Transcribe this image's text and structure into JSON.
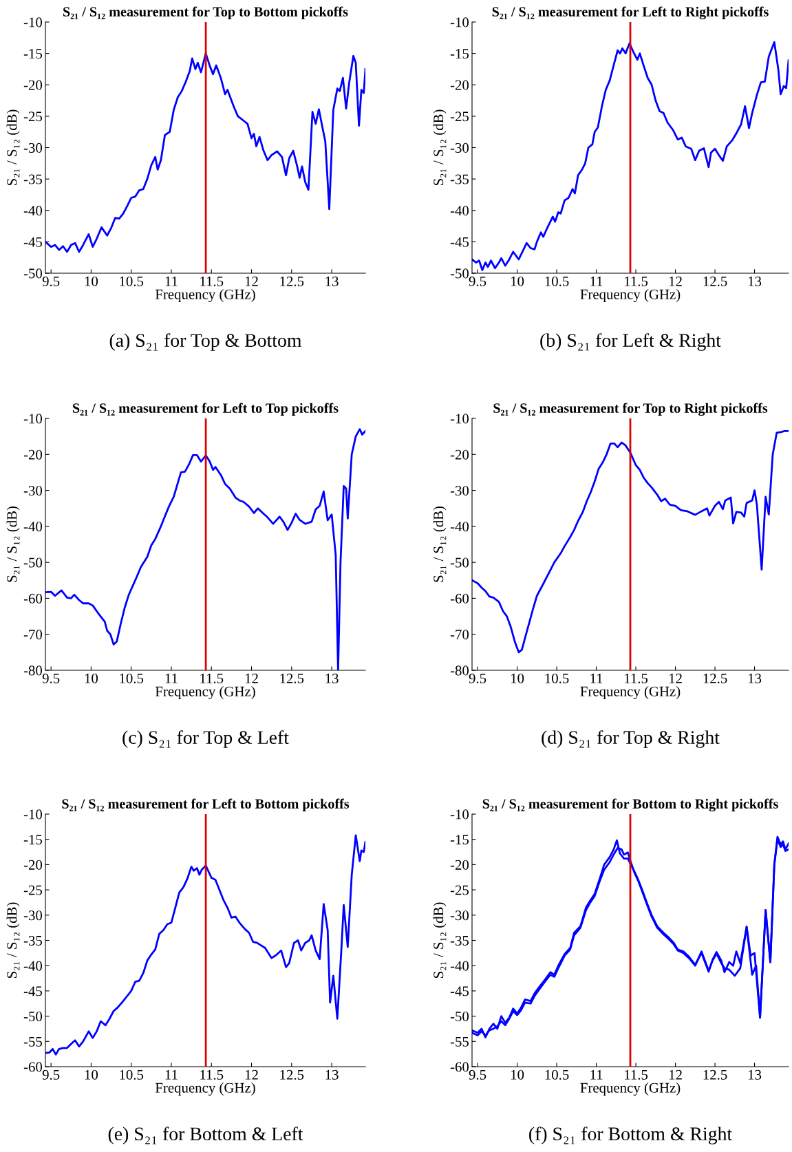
{
  "chart_data": [
    {
      "type": "line",
      "title": "S₂₁ / S₁₂ measurement for Top to Bottom pickoffs",
      "xlabel": "Frequency (GHz)",
      "ylabel": "S₂₁ / S₁₂ (dB)",
      "xlim": [
        9.43,
        13.42
      ],
      "ylim": [
        -50,
        -10
      ],
      "xticks": [
        9.5,
        10,
        10.5,
        11,
        11.5,
        12,
        12.5,
        13
      ],
      "yticks": [
        -50,
        -45,
        -40,
        -35,
        -30,
        -25,
        -20,
        -15,
        -10
      ],
      "grid": false,
      "legend": false,
      "ref_lines": [
        {
          "axis": "x",
          "value": 11.43,
          "color": "#e00000"
        }
      ],
      "annotations": [
        "(a) S₂₁ for Top & Bottom"
      ],
      "series": [
        {
          "color": "#0000ff",
          "x": [
            9.43,
            9.5,
            9.55,
            9.6,
            9.65,
            9.7,
            9.75,
            9.8,
            9.85,
            9.9,
            9.97,
            10.02,
            10.07,
            10.13,
            10.2,
            10.25,
            10.3,
            10.35,
            10.4,
            10.45,
            10.5,
            10.55,
            10.6,
            10.65,
            10.7,
            10.75,
            10.8,
            10.83,
            10.87,
            10.92,
            10.98,
            11.03,
            11.08,
            11.13,
            11.18,
            11.23,
            11.26,
            11.3,
            11.33,
            11.37,
            11.43,
            11.48,
            11.52,
            11.56,
            11.62,
            11.67,
            11.7,
            11.78,
            11.83,
            11.9,
            11.95,
            12.0,
            12.03,
            12.06,
            12.1,
            12.15,
            12.2,
            12.25,
            12.32,
            12.38,
            12.43,
            12.47,
            12.52,
            12.57,
            12.6,
            12.63,
            12.67,
            12.71,
            12.76,
            12.8,
            12.84,
            12.88,
            12.92,
            12.97,
            13.02,
            13.07,
            13.1,
            13.14,
            13.18,
            13.22,
            13.27,
            13.3,
            13.34,
            13.37,
            13.4,
            13.42
          ],
          "values": [
            -45,
            -45.8,
            -45.5,
            -46.3,
            -45.7,
            -46.6,
            -45.5,
            -45.2,
            -46.6,
            -45.5,
            -43.8,
            -45.8,
            -44.5,
            -42.7,
            -44,
            -42.8,
            -41.2,
            -41.3,
            -40.5,
            -39.3,
            -38,
            -37.8,
            -36.8,
            -36.6,
            -35,
            -32.8,
            -31.5,
            -33.5,
            -32,
            -28,
            -27.5,
            -24,
            -22,
            -21,
            -19.5,
            -17.8,
            -15.8,
            -17.5,
            -16.5,
            -18,
            -15,
            -17,
            -18.3,
            -16.9,
            -19,
            -21.5,
            -20.8,
            -23.5,
            -25,
            -25.7,
            -26.2,
            -28.5,
            -27.8,
            -29.8,
            -28.3,
            -30.5,
            -32,
            -31.2,
            -30.6,
            -31.5,
            -34.4,
            -31.7,
            -30.5,
            -33,
            -34.8,
            -33,
            -35.5,
            -36.7,
            -24.3,
            -26.2,
            -23.9,
            -26.5,
            -29,
            -39.8,
            -24,
            -20.6,
            -21,
            -18.9,
            -23.8,
            -19.5,
            -15.4,
            -16.5,
            -26.5,
            -20.8,
            -21.3,
            -17.5
          ]
        }
      ]
    },
    {
      "type": "line",
      "title": "S₂₁ / S₁₂ measurement for Left to Right pickoffs",
      "xlabel": "Frequency (GHz)",
      "ylabel": "S₂₁ / S₁₂ (dB)",
      "xlim": [
        9.43,
        13.43
      ],
      "ylim": [
        -50,
        -10
      ],
      "xticks": [
        9.5,
        10,
        10.5,
        11,
        11.5,
        12,
        12.5,
        13
      ],
      "yticks": [
        -50,
        -45,
        -40,
        -35,
        -30,
        -25,
        -20,
        -15,
        -10
      ],
      "grid": false,
      "legend": false,
      "ref_lines": [
        {
          "axis": "x",
          "value": 11.43,
          "color": "#e00000"
        }
      ],
      "annotations": [
        "(b) S₂₁ for Left & Right"
      ],
      "series": [
        {
          "color": "#0000ff",
          "x": [
            9.43,
            9.48,
            9.52,
            9.56,
            9.6,
            9.63,
            9.67,
            9.72,
            9.77,
            9.8,
            9.85,
            9.9,
            9.95,
            10.02,
            10.07,
            10.12,
            10.17,
            10.22,
            10.25,
            10.3,
            10.33,
            10.38,
            10.45,
            10.48,
            10.52,
            10.55,
            10.6,
            10.65,
            10.7,
            10.73,
            10.77,
            10.82,
            10.86,
            10.9,
            10.95,
            10.98,
            11.02,
            11.07,
            11.12,
            11.17,
            11.22,
            11.27,
            11.3,
            11.33,
            11.37,
            11.42,
            11.47,
            11.52,
            11.55,
            11.6,
            11.65,
            11.7,
            11.75,
            11.8,
            11.85,
            11.9,
            11.97,
            12.03,
            12.08,
            12.13,
            12.2,
            12.25,
            12.3,
            12.36,
            12.42,
            12.45,
            12.5,
            12.55,
            12.6,
            12.65,
            12.72,
            12.78,
            12.83,
            12.88,
            12.93,
            12.97,
            13.03,
            13.08,
            13.13,
            13.18,
            13.25,
            13.3,
            13.33,
            13.37,
            13.4,
            13.43
          ],
          "values": [
            -47.8,
            -48.3,
            -48,
            -49.5,
            -48.3,
            -49,
            -48,
            -49.2,
            -48.3,
            -47.6,
            -48.8,
            -47.8,
            -46.6,
            -47.8,
            -46.5,
            -45.2,
            -46,
            -46.2,
            -45,
            -43.5,
            -44.2,
            -42.8,
            -41,
            -41.8,
            -40.3,
            -40.5,
            -38.4,
            -38,
            -36.6,
            -37.3,
            -34.4,
            -33.5,
            -32.5,
            -30,
            -29.5,
            -27.5,
            -26.8,
            -23.5,
            -20.8,
            -19.3,
            -16.9,
            -14.5,
            -15,
            -14.2,
            -15,
            -13.4,
            -14.8,
            -16,
            -15,
            -17,
            -18.9,
            -20,
            -22.5,
            -24.2,
            -24.5,
            -26,
            -27.2,
            -28.7,
            -28.4,
            -29.8,
            -30.2,
            -32,
            -30.5,
            -30.1,
            -33.1,
            -30.8,
            -30.2,
            -31.2,
            -32.1,
            -29.8,
            -28.8,
            -27.5,
            -26.3,
            -23.4,
            -26.9,
            -24.5,
            -21.6,
            -19.6,
            -19.5,
            -15.5,
            -13.2,
            -17.5,
            -21.5,
            -20.2,
            -20.5,
            -16.1
          ]
        }
      ]
    },
    {
      "type": "line",
      "title": "S₂₁ / S₁₂ measurement for Left to Top pickoffs",
      "xlabel": "Frequency (GHz)",
      "ylabel": "S₂₁ / S₁₂ (dB)",
      "xlim": [
        9.43,
        13.42
      ],
      "ylim": [
        -80,
        -10
      ],
      "xticks": [
        9.5,
        10,
        10.5,
        11,
        11.5,
        12,
        12.5,
        13
      ],
      "yticks": [
        -80,
        -70,
        -60,
        -50,
        -40,
        -30,
        -20,
        -10
      ],
      "grid": false,
      "legend": false,
      "ref_lines": [
        {
          "axis": "x",
          "value": 11.43,
          "color": "#e00000"
        }
      ],
      "annotations": [
        "(c) S₂₁ for Top & Left"
      ],
      "series": [
        {
          "color": "#0000ff",
          "x": [
            9.43,
            9.5,
            9.55,
            9.63,
            9.7,
            9.75,
            9.79,
            9.85,
            9.9,
            9.97,
            10.02,
            10.1,
            10.17,
            10.2,
            10.24,
            10.28,
            10.32,
            10.37,
            10.42,
            10.47,
            10.52,
            10.57,
            10.62,
            10.7,
            10.75,
            10.8,
            10.87,
            10.92,
            10.97,
            11.03,
            11.08,
            11.12,
            11.17,
            11.22,
            11.27,
            11.32,
            11.37,
            11.43,
            11.48,
            11.52,
            11.55,
            11.62,
            11.67,
            11.73,
            11.8,
            11.85,
            11.9,
            11.97,
            12.03,
            12.08,
            12.15,
            12.2,
            12.27,
            12.35,
            12.4,
            12.45,
            12.5,
            12.55,
            12.6,
            12.67,
            12.75,
            12.8,
            12.85,
            12.9,
            12.95,
            13.0,
            13.05,
            13.08,
            13.11,
            13.15,
            13.18,
            13.2,
            13.25,
            13.3,
            13.35,
            13.38,
            13.42
          ],
          "values": [
            -58.3,
            -58.2,
            -59.3,
            -57.8,
            -59.8,
            -60,
            -59,
            -60.5,
            -61.4,
            -61.4,
            -62,
            -64.5,
            -66.5,
            -69,
            -70,
            -72.8,
            -72,
            -67,
            -62.5,
            -59,
            -56.5,
            -54,
            -51.3,
            -48.5,
            -45.3,
            -43.5,
            -40,
            -37.2,
            -34.5,
            -31.8,
            -28,
            -25,
            -24.8,
            -22.8,
            -20.2,
            -20.2,
            -22,
            -20.3,
            -22,
            -24.3,
            -23.5,
            -25.8,
            -28.2,
            -29.5,
            -32,
            -32.8,
            -33.2,
            -34.5,
            -36.3,
            -35,
            -36.5,
            -37.5,
            -39.3,
            -37.3,
            -38.8,
            -41,
            -39,
            -36.5,
            -38.2,
            -39.3,
            -38.7,
            -35.3,
            -34.3,
            -30.3,
            -38.3,
            -36.7,
            -48,
            -80,
            -50,
            -28.8,
            -29.5,
            -37.8,
            -20,
            -15,
            -13,
            -14.5,
            -13.5
          ]
        }
      ]
    },
    {
      "type": "line",
      "title": "S₂₁ / S₁₂ measurement for Top to Right pickoffs",
      "xlabel": "Frequency (GHz)",
      "ylabel": "S₂₁ / S₁₂ (dB)",
      "xlim": [
        9.43,
        13.43
      ],
      "ylim": [
        -80,
        -10
      ],
      "xticks": [
        9.5,
        10,
        10.5,
        11,
        11.5,
        12,
        12.5,
        13
      ],
      "yticks": [
        -80,
        -70,
        -60,
        -50,
        -40,
        -30,
        -20,
        -10
      ],
      "grid": false,
      "legend": false,
      "ref_lines": [
        {
          "axis": "x",
          "value": 11.43,
          "color": "#e00000"
        }
      ],
      "annotations": [
        "(d) S₂₁ for Top & Right"
      ],
      "series": [
        {
          "color": "#0000ff",
          "x": [
            9.43,
            9.5,
            9.55,
            9.6,
            9.65,
            9.7,
            9.77,
            9.82,
            9.87,
            9.92,
            9.97,
            10.02,
            10.06,
            10.1,
            10.15,
            10.2,
            10.25,
            10.33,
            10.4,
            10.47,
            10.55,
            10.6,
            10.67,
            10.72,
            10.77,
            10.83,
            10.88,
            10.93,
            10.98,
            11.03,
            11.08,
            11.13,
            11.18,
            11.23,
            11.27,
            11.32,
            11.37,
            11.43,
            11.5,
            11.55,
            11.6,
            11.65,
            11.7,
            11.77,
            11.82,
            11.87,
            11.93,
            12.0,
            12.07,
            12.15,
            12.25,
            12.33,
            12.4,
            12.43,
            12.5,
            12.55,
            12.6,
            12.63,
            12.7,
            12.73,
            12.77,
            12.83,
            12.87,
            12.9,
            12.97,
            13.0,
            13.03,
            13.09,
            13.14,
            13.18,
            13.23,
            13.28,
            13.33,
            13.38,
            13.43
          ],
          "values": [
            -55,
            -55.8,
            -57,
            -58,
            -59.5,
            -59.8,
            -61,
            -63.5,
            -65,
            -68,
            -72,
            -75,
            -74.3,
            -71,
            -67,
            -63,
            -59.3,
            -56,
            -53,
            -50,
            -47.5,
            -45.5,
            -43,
            -41,
            -38.5,
            -36,
            -33,
            -30.5,
            -27.5,
            -24,
            -22.3,
            -20,
            -17,
            -17,
            -18,
            -16.7,
            -17.5,
            -19.5,
            -23,
            -24.3,
            -26.5,
            -28,
            -29.2,
            -31.2,
            -33,
            -32.3,
            -34,
            -34.3,
            -35.5,
            -35.8,
            -36.8,
            -35.8,
            -35,
            -37,
            -34.3,
            -33.2,
            -35.2,
            -32.8,
            -32,
            -39.2,
            -36,
            -36.2,
            -37.3,
            -33.5,
            -32.8,
            -30,
            -34,
            -52,
            -31.8,
            -36.7,
            -20,
            -14,
            -13.8,
            -13.5,
            -13.5
          ]
        }
      ]
    },
    {
      "type": "line",
      "title": "S₂₁ / S₁₂ measurement for Left to Bottom pickoffs",
      "xlabel": "Frequency (GHz)",
      "ylabel": "S₂₁ / S₁₂ (dB)",
      "xlim": [
        9.43,
        13.42
      ],
      "ylim": [
        -60,
        -10
      ],
      "xticks": [
        9.5,
        10,
        10.5,
        11,
        11.5,
        12,
        12.5,
        13
      ],
      "yticks": [
        -60,
        -55,
        -50,
        -45,
        -40,
        -35,
        -30,
        -25,
        -20,
        -15,
        -10
      ],
      "grid": false,
      "legend": false,
      "ref_lines": [
        {
          "axis": "x",
          "value": 11.43,
          "color": "#e00000"
        }
      ],
      "annotations": [
        "(e) S₂₁ for Bottom & Left"
      ],
      "series": [
        {
          "color": "#0000ff",
          "x": [
            9.43,
            9.48,
            9.52,
            9.56,
            9.6,
            9.65,
            9.7,
            9.75,
            9.8,
            9.85,
            9.9,
            9.97,
            10.02,
            10.07,
            10.12,
            10.18,
            10.23,
            10.28,
            10.33,
            10.4,
            10.45,
            10.5,
            10.55,
            10.6,
            10.65,
            10.7,
            10.75,
            10.8,
            10.85,
            10.9,
            10.95,
            11.0,
            11.05,
            11.1,
            11.15,
            11.2,
            11.25,
            11.28,
            11.32,
            11.35,
            11.38,
            11.43,
            11.5,
            11.55,
            11.6,
            11.65,
            11.7,
            11.75,
            11.8,
            11.85,
            11.92,
            11.97,
            12.02,
            12.07,
            12.12,
            12.17,
            12.25,
            12.3,
            12.37,
            12.43,
            12.47,
            12.53,
            12.58,
            12.62,
            12.67,
            12.72,
            12.75,
            12.8,
            12.85,
            12.9,
            12.95,
            12.98,
            13.02,
            13.07,
            13.12,
            13.15,
            13.2,
            13.25,
            13.3,
            13.35,
            13.37,
            13.4,
            13.42
          ],
          "values": [
            -57.3,
            -57.2,
            -56.5,
            -57.6,
            -56.5,
            -56.3,
            -56.3,
            -55.5,
            -54.8,
            -56,
            -55,
            -53,
            -54.3,
            -53,
            -51,
            -51.8,
            -50.5,
            -49,
            -48.3,
            -47,
            -46,
            -45,
            -43.2,
            -43,
            -41.5,
            -39,
            -37.8,
            -36.8,
            -33.7,
            -33,
            -31.8,
            -31.5,
            -28.5,
            -25.5,
            -24.5,
            -22.8,
            -20.4,
            -21.2,
            -20.7,
            -22,
            -21,
            -20.2,
            -22.6,
            -23,
            -25,
            -27,
            -28.5,
            -30.5,
            -30.3,
            -31.5,
            -32.8,
            -33.5,
            -35.3,
            -35.5,
            -36,
            -36.5,
            -38.5,
            -38,
            -37,
            -40.3,
            -39.5,
            -35.5,
            -35,
            -37,
            -35.5,
            -35,
            -34,
            -37,
            -38.7,
            -27.8,
            -33,
            -47.3,
            -42,
            -50.5,
            -37,
            -28,
            -36.3,
            -22,
            -14.2,
            -19.3,
            -17.2,
            -17.5,
            -15.5
          ]
        }
      ]
    },
    {
      "type": "line",
      "title": "S₂₁ / S₁₂ measurement for Bottom to Right pickoffs",
      "xlabel": "Frequency (GHz)",
      "ylabel": "S₂₁ / S₁₂ (dB)",
      "xlim": [
        9.43,
        13.43
      ],
      "ylim": [
        -60,
        -10
      ],
      "xticks": [
        9.5,
        10,
        10.5,
        11,
        11.5,
        12,
        12.5,
        13
      ],
      "yticks": [
        -60,
        -55,
        -50,
        -45,
        -40,
        -35,
        -30,
        -25,
        -20,
        -15,
        -10
      ],
      "grid": false,
      "legend": false,
      "ref_lines": [
        {
          "axis": "x",
          "value": 11.43,
          "color": "#e00000"
        }
      ],
      "annotations": [
        "(f) S₂₁ for Bottom & Right"
      ],
      "series": [
        {
          "color": "#0000ff",
          "x": [
            9.43,
            9.5,
            9.55,
            9.6,
            9.65,
            9.7,
            9.75,
            9.8,
            9.85,
            9.9,
            9.95,
            10.0,
            10.05,
            10.1,
            10.17,
            10.22,
            10.28,
            10.35,
            10.42,
            10.47,
            10.52,
            10.6,
            10.67,
            10.72,
            10.8,
            10.87,
            10.92,
            10.98,
            11.05,
            11.1,
            11.17,
            11.22,
            11.26,
            11.3,
            11.35,
            11.4,
            11.43,
            11.48,
            11.53,
            11.58,
            11.65,
            11.7,
            11.77,
            11.85,
            11.92,
            11.98,
            12.03,
            12.1,
            12.17,
            12.25,
            12.33,
            12.42,
            12.47,
            12.52,
            12.58,
            12.62,
            12.68,
            12.73,
            12.77,
            12.82,
            12.9,
            12.95,
            13.0,
            13.07,
            13.14,
            13.2,
            13.25,
            13.29,
            13.33,
            13.36,
            13.39,
            13.43
          ],
          "values": [
            -52.8,
            -53.3,
            -52.5,
            -54.2,
            -52.5,
            -51.5,
            -52.5,
            -50,
            -51.3,
            -50.3,
            -48.5,
            -49.5,
            -48.3,
            -46.7,
            -47,
            -45.5,
            -44.2,
            -42.8,
            -41.3,
            -41.8,
            -40,
            -37.7,
            -36.5,
            -33.5,
            -32.2,
            -28.5,
            -27.2,
            -25.8,
            -22.5,
            -20,
            -18.5,
            -17,
            -15.2,
            -17.8,
            -18.8,
            -18.8,
            -19.8,
            -21.3,
            -23,
            -25,
            -28,
            -30,
            -32.2,
            -33.5,
            -34.5,
            -35.5,
            -36.8,
            -37.2,
            -38.2,
            -39.8,
            -37.5,
            -41.2,
            -38.8,
            -37.3,
            -39,
            -41.3,
            -39.3,
            -40,
            -37.2,
            -39.5,
            -32.3,
            -38,
            -37.5,
            -50.3,
            -29,
            -39.3,
            -20,
            -14.5,
            -16,
            -15.4,
            -17,
            -15.8
          ]
        },
        {
          "color": "#0000ff",
          "x": [
            9.43,
            9.5,
            9.55,
            9.6,
            9.65,
            9.7,
            9.75,
            9.8,
            9.85,
            9.9,
            9.95,
            10.0,
            10.05,
            10.1,
            10.17,
            10.22,
            10.28,
            10.35,
            10.42,
            10.47,
            10.52,
            10.6,
            10.67,
            10.72,
            10.8,
            10.87,
            10.92,
            10.98,
            11.05,
            11.1,
            11.17,
            11.22,
            11.27,
            11.32,
            11.35,
            11.4,
            11.43,
            11.48,
            11.53,
            11.58,
            11.65,
            11.7,
            11.77,
            11.85,
            11.92,
            11.98,
            12.03,
            12.1,
            12.17,
            12.25,
            12.33,
            12.42,
            12.47,
            12.52,
            12.58,
            12.62,
            12.68,
            12.75,
            12.82,
            12.9,
            12.97,
            13.02,
            13.07,
            13.14,
            13.2,
            13.25,
            13.29,
            13.33,
            13.36,
            13.39,
            13.43
          ],
          "values": [
            -53.3,
            -53.8,
            -53,
            -53.8,
            -52.8,
            -52.5,
            -52,
            -51,
            -51.8,
            -50.5,
            -49,
            -49.8,
            -48.8,
            -47.3,
            -47.5,
            -46,
            -44.7,
            -43.2,
            -41.8,
            -42.2,
            -40.5,
            -38,
            -36.8,
            -34,
            -32.5,
            -29,
            -27.6,
            -26.2,
            -23,
            -21,
            -19.5,
            -18,
            -16.7,
            -17,
            -18,
            -17.6,
            -19.2,
            -21.5,
            -23.2,
            -25.3,
            -28.3,
            -30.3,
            -32.5,
            -33.8,
            -34.8,
            -35.8,
            -37,
            -37.5,
            -38.5,
            -40,
            -37.2,
            -41,
            -39,
            -37.6,
            -39.5,
            -40.5,
            -40.8,
            -42,
            -40.5,
            -32.3,
            -41.8,
            -40,
            -50.3,
            -29,
            -39.3,
            -20,
            -15,
            -16.5,
            -16,
            -17.3,
            -17
          ]
        }
      ]
    }
  ]
}
